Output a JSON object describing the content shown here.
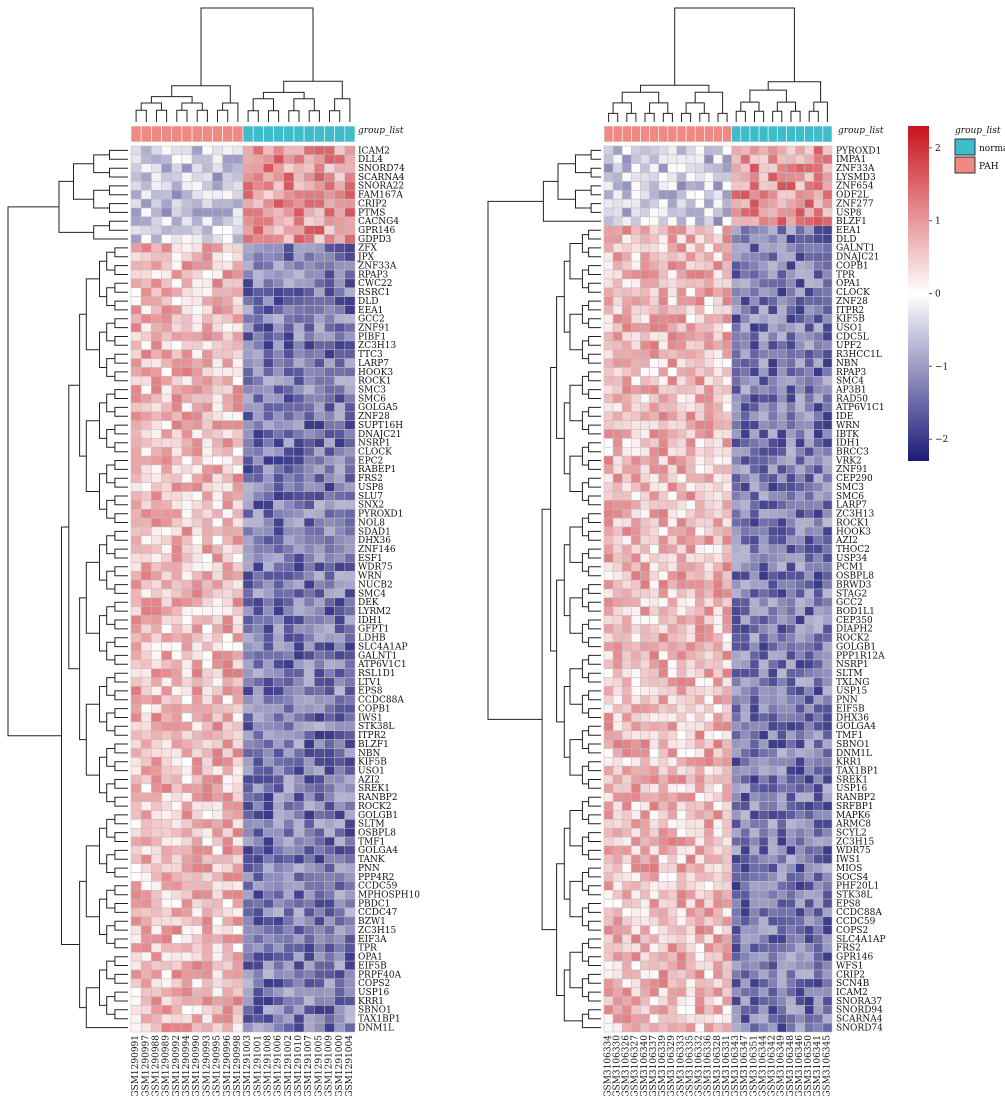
{
  "color_scale": {
    "low": "#1c1a78",
    "mid": "#ffffff",
    "high": "#c8141c",
    "range": [
      -2.3,
      2.3
    ],
    "ticks": [
      2,
      1,
      0,
      -1,
      -2
    ],
    "tick_labels": [
      "2",
      "1",
      "0",
      "−1",
      "−2"
    ]
  },
  "group_colors": {
    "norma": "#3fbccb",
    "PAH": "#ee8a83"
  },
  "legend": {
    "title": "group_list",
    "items": [
      {
        "label": "norma",
        "key": "norma"
      },
      {
        "label": "PAH",
        "key": "PAH"
      }
    ]
  },
  "chart_data": [
    {
      "type": "heatmap",
      "annotation_label": "group_list",
      "columns": [
        "GSM1290991",
        "GSM1290997",
        "GSM1290988",
        "GSM1290989",
        "GSM1290992",
        "GSM1290994",
        "GSM1290990",
        "GSM1290993",
        "GSM1290995",
        "GSM1290996",
        "GSM1290998",
        "GSM1291003",
        "GSM1291001",
        "GSM1291008",
        "GSM1291006",
        "GSM1291002",
        "GSM1291010",
        "GSM1291007",
        "GSM1291005",
        "GSM1291009",
        "GSM1291000",
        "GSM1291004"
      ],
      "column_groups": [
        "PAH",
        "PAH",
        "PAH",
        "PAH",
        "PAH",
        "PAH",
        "PAH",
        "PAH",
        "PAH",
        "PAH",
        "PAH",
        "norma",
        "norma",
        "norma",
        "norma",
        "norma",
        "norma",
        "norma",
        "norma",
        "norma",
        "norma",
        "norma"
      ],
      "rows": [
        "ICAM2",
        "DLL4",
        "SNORD74",
        "SCARNA4",
        "SNORA22",
        "FAM167A",
        "CRIP2",
        "PTMS",
        "CACNG4",
        "GPR146",
        "GDPD3",
        "ZFX",
        "JPX",
        "ZNF33A",
        "RPAP3",
        "CWC22",
        "RSRC1",
        "DLD",
        "EEA1",
        "GCC2",
        "ZNF91",
        "PIBF1",
        "ZC3H13",
        "TTC3",
        "LARP7",
        "HOOK3",
        "ROCK1",
        "SMC3",
        "SMC6",
        "GOLGA5",
        "ZNF28",
        "SUPT16H",
        "DNAJC21",
        "NSRP1",
        "CLOCK",
        "EPC2",
        "RABEP1",
        "FRS2",
        "USP8",
        "SLU7",
        "SNX2",
        "PYROXD1",
        "NOL8",
        "SDAD1",
        "DHX36",
        "ZNF146",
        "ESF1",
        "WDR75",
        "WRN",
        "NUCB2",
        "SMC4",
        "DEK",
        "LYRM2",
        "IDH1",
        "GFPT1",
        "LDHB",
        "SLC4A1AP",
        "GALNT1",
        "ATP6V1C1",
        "RSL1D1",
        "LTV1",
        "EPS8",
        "CCDC88A",
        "COPB1",
        "IWS1",
        "STK38L",
        "ITPR2",
        "BLZF1",
        "NBN",
        "KIF5B",
        "USO1",
        "AZI2",
        "SREK1",
        "RANBP2",
        "ROCK2",
        "GOLGB1",
        "SLTM",
        "OSBPL8",
        "TMF1",
        "GOLGA4",
        "TANK",
        "PNN",
        "PPP4R2",
        "CCDC59",
        "MPHOSPH10",
        "PBDC1",
        "CCDC47",
        "BZW1",
        "ZC3H15",
        "EIF3A",
        "TPR",
        "OPA1",
        "EIF5B",
        "PRPF40A",
        "COPS2",
        "USP16",
        "KRR1",
        "SBNO1",
        "TAX1BP1",
        "DNM1L"
      ],
      "up_in_normal_rows": 11
    },
    {
      "type": "heatmap",
      "annotation_label": "group_list",
      "columns": [
        "GSM3106334",
        "GSM3106330",
        "GSM3106326",
        "GSM3106327",
        "GSM3106340",
        "GSM3106337",
        "GSM3106339",
        "GSM3106329",
        "GSM3106333",
        "GSM3106335",
        "GSM3106332",
        "GSM3106336",
        "GSM3106328",
        "GSM3106331",
        "GSM3106343",
        "GSM3106347",
        "GSM3106351",
        "GSM3106344",
        "GSM3106342",
        "GSM3106349",
        "GSM3106348",
        "GSM3106346",
        "GSM3106350",
        "GSM3106341",
        "GSM3106345"
      ],
      "column_groups": [
        "PAH",
        "PAH",
        "PAH",
        "PAH",
        "PAH",
        "PAH",
        "PAH",
        "PAH",
        "PAH",
        "PAH",
        "PAH",
        "PAH",
        "PAH",
        "PAH",
        "norma",
        "norma",
        "norma",
        "norma",
        "norma",
        "norma",
        "norma",
        "norma",
        "norma",
        "norma",
        "norma"
      ],
      "rows": [
        "PYROXD1",
        "IMPA1",
        "ZNF33A",
        "LYSMD3",
        "ZNF654",
        "ODF2L",
        "ZNF277",
        "USP8",
        "BLZF1",
        "EEA1",
        "DLD",
        "GALNT1",
        "DNAJC21",
        "COPB1",
        "TPR",
        "OPA1",
        "CLOCK",
        "ZNF28",
        "ITPR2",
        "KIF5B",
        "USO1",
        "CDC5L",
        "UPF2",
        "R3HCC1L",
        "NBN",
        "RPAP3",
        "SMC4",
        "AP3B1",
        "RAD50",
        "ATP6V1C1",
        "IDE",
        "WRN",
        "IBTK",
        "IDH1",
        "BRCC3",
        "VRK2",
        "ZNF91",
        "CEP290",
        "SMC3",
        "SMC6",
        "LARP7",
        "ZC3H13",
        "ROCK1",
        "HOOK3",
        "AZI2",
        "THOC2",
        "USP34",
        "PCM1",
        "OSBPL8",
        "BRWD3",
        "STAG2",
        "GCC2",
        "BOD1L1",
        "CEP350",
        "DIAPH2",
        "ROCK2",
        "GOLGB1",
        "PPP1R12A",
        "NSRP1",
        "SLTM",
        "TXLNG",
        "USP15",
        "PNN",
        "EIF5B",
        "DHX36",
        "GOLGA4",
        "TMF1",
        "SBNO1",
        "DNM1L",
        "KRR1",
        "TAX1BP1",
        "SREK1",
        "USP16",
        "RANBP2",
        "SRFBP1",
        "MAPK6",
        "ARMC8",
        "SCYL2",
        "ZC3H15",
        "WDR75",
        "IWS1",
        "MIOS",
        "SOCS4",
        "PHF20L1",
        "STK38L",
        "EPS8",
        "CCDC88A",
        "CCDC59",
        "COPS2",
        "SLC4A1AP",
        "FRS2",
        "GPR146",
        "WFS1",
        "CRIP2",
        "SCN4B",
        "ICAM2",
        "SNORA37",
        "SNORD94",
        "SCARNA4",
        "SNORD74"
      ],
      "up_in_normal_rows": 9
    }
  ]
}
